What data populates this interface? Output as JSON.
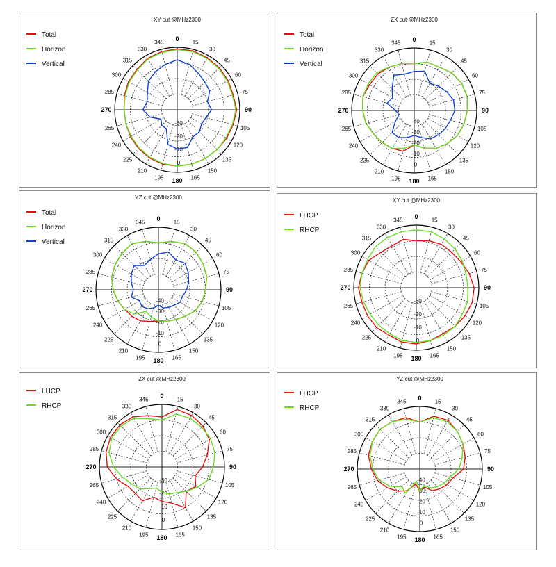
{
  "colors": {
    "Total": "#e01010",
    "Horizon": "#66dd22",
    "Vertical": "#1040d0",
    "LHCP": "#e01010",
    "RHCP": "#66dd22"
  },
  "chart_data": [
    {
      "type": "polar",
      "title": "XY cut @MHz2300",
      "angle_labels": [
        "0",
        "15",
        "30",
        "45",
        "60",
        "75",
        "90",
        "105",
        "120",
        "135",
        "150",
        "165",
        "180",
        "195",
        "210",
        "225",
        "240",
        "265",
        "270",
        "285",
        "300",
        "315",
        "330",
        "345"
      ],
      "radial_labels": [
        "-30",
        "-20",
        "-10",
        "0"
      ],
      "series": [
        {
          "name": "Total",
          "values": [
            -1,
            -1,
            -1.5,
            -2,
            -2.5,
            -3,
            -2,
            -3,
            -3.5,
            -4,
            -4,
            -4,
            -4,
            -4,
            -4.5,
            -5,
            -5.5,
            -6,
            -6,
            -5,
            -4,
            -3.5,
            -2,
            -1.5
          ]
        },
        {
          "name": "Horizon",
          "values": [
            -1.5,
            -1.5,
            -2,
            -2.5,
            -3,
            -3.5,
            -2.5,
            -3.5,
            -4,
            -4,
            -4,
            -4,
            -4,
            -4.5,
            -5,
            -5.5,
            -6,
            -6,
            -6,
            -5.5,
            -4.5,
            -4,
            -2.5,
            -2
          ]
        },
        {
          "name": "Vertical",
          "values": [
            -8,
            -10,
            -13,
            -15,
            -16,
            -20,
            -18,
            -21,
            -22,
            -20,
            -20,
            -15,
            -15,
            -17,
            -26,
            -26,
            -28,
            -22,
            -18,
            -20,
            -18,
            -14,
            -12,
            -10
          ]
        }
      ]
    },
    {
      "type": "polar",
      "title": "ZX cut @MHz2300",
      "angle_labels": [
        "0",
        "15",
        "30",
        "45",
        "60",
        "75",
        "90",
        "105",
        "120",
        "135",
        "150",
        "165",
        "180",
        "195",
        "210",
        "225",
        "240",
        "265",
        "270",
        "285",
        "300",
        "315",
        "330",
        "345"
      ],
      "radial_labels": [
        "-40",
        "-30",
        "-20",
        "-10",
        "0"
      ],
      "series": [
        {
          "name": "Total",
          "values": [
            -10,
            -8,
            -8,
            -6,
            -5,
            -5,
            -6,
            -7,
            -8,
            -10,
            -12,
            -15,
            -18,
            -13,
            -12,
            -11,
            -10,
            -8,
            -7,
            -6,
            -7,
            -7,
            -8,
            -9
          ]
        },
        {
          "name": "Horizon",
          "values": [
            -10,
            -8,
            -8,
            -6,
            -5,
            -5,
            -6,
            -7,
            -8,
            -10,
            -12,
            -15,
            -18,
            -15,
            -12,
            -11,
            -10,
            -8,
            -7,
            -6,
            -6,
            -6,
            -8,
            -9
          ]
        },
        {
          "name": "Vertical",
          "values": [
            -15,
            -14,
            -20,
            -18,
            -16,
            -14,
            -14,
            -16,
            -17,
            -18,
            -19,
            -22,
            -24,
            -22,
            -20,
            -20,
            -26,
            -30,
            -28,
            -22,
            -24,
            -20,
            -14,
            -16
          ]
        }
      ]
    },
    {
      "type": "polar",
      "title": "YZ cut @MHz2300",
      "angle_labels": [
        "0",
        "15",
        "30",
        "45",
        "60",
        "75",
        "90",
        "105",
        "120",
        "135",
        "150",
        "165",
        "180",
        "195",
        "210",
        "225",
        "240",
        "265",
        "270",
        "285",
        "300",
        "315",
        "330",
        "345"
      ],
      "radial_labels": [
        "-40",
        "-30",
        "-20",
        "-10",
        "0"
      ],
      "series": [
        {
          "name": "Total",
          "values": [
            -10,
            -8,
            -6,
            -6,
            -7,
            -8,
            -10,
            -11,
            -13,
            -16,
            -18,
            -19,
            -20,
            -19,
            -17,
            -16,
            -15,
            -13,
            -11,
            -9,
            -8,
            -7,
            -6,
            -8
          ]
        },
        {
          "name": "Horizon",
          "values": [
            -10,
            -8,
            -6,
            -6,
            -7,
            -8,
            -10,
            -11,
            -13,
            -16,
            -18,
            -19,
            -20,
            -22,
            -24,
            -18,
            -15,
            -13,
            -11,
            -9,
            -8,
            -7,
            -6,
            -8
          ]
        },
        {
          "name": "Vertical",
          "values": [
            -17,
            -15,
            -18,
            -16,
            -18,
            -20,
            -22,
            -24,
            -24,
            -26,
            -27,
            -28,
            -30,
            -28,
            -26,
            -25,
            -26,
            -22,
            -24,
            -22,
            -20,
            -18,
            -22,
            -20
          ]
        }
      ]
    },
    {
      "type": "polar",
      "title": "XY cut @MHz2300",
      "angle_labels": [
        "0",
        "15",
        "30",
        "45",
        "60",
        "75",
        "90",
        "105",
        "120",
        "135",
        "150",
        "165",
        "180",
        "195",
        "210",
        "225",
        "240",
        "265",
        "270",
        "285",
        "300",
        "315",
        "330",
        "345"
      ],
      "radial_labels": [
        "-30",
        "-20",
        "-10",
        "0"
      ],
      "series": [
        {
          "name": "LHCP",
          "values": [
            -10,
            -9,
            -8,
            -8,
            -7,
            -5,
            -3,
            -3,
            -4,
            -5,
            -6,
            -5,
            -4,
            -4,
            -5,
            -4,
            -4,
            -4,
            -3,
            -4,
            -5,
            -8,
            -9,
            -8
          ]
        },
        {
          "name": "RHCP",
          "values": [
            -3,
            -3,
            -4,
            -5,
            -6,
            -7,
            -7,
            -6,
            -6,
            -5,
            -5,
            -5,
            -5,
            -5,
            -6,
            -6,
            -6,
            -5,
            -4,
            -4,
            -4,
            -3,
            -3,
            -3
          ]
        }
      ]
    },
    {
      "type": "polar",
      "title": "ZX cut @MHz2300",
      "angle_labels": [
        "0",
        "15",
        "30",
        "45",
        "60",
        "75",
        "90",
        "105",
        "120",
        "135",
        "150",
        "165",
        "180",
        "195",
        "210",
        "225",
        "240",
        "265",
        "270",
        "285",
        "300",
        "315",
        "330",
        "345"
      ],
      "radial_labels": [
        "-30",
        "-20",
        "-10",
        "0"
      ],
      "series": [
        {
          "name": "LHCP",
          "values": [
            -8,
            -2,
            -2,
            -3,
            -5,
            -10,
            -14,
            -18,
            -15,
            -18,
            -10,
            -16,
            -18,
            -20,
            -15,
            -16,
            -15,
            -10,
            -5,
            -3,
            -2,
            -2,
            -3,
            -6
          ]
        },
        {
          "name": "RHCP",
          "values": [
            -10,
            -5,
            -4,
            -4,
            -4,
            -5,
            -7,
            -9,
            -14,
            -18,
            -21,
            -22,
            -24,
            -26,
            -24,
            -20,
            -18,
            -14,
            -9,
            -5,
            -3,
            -3,
            -4,
            -8
          ]
        }
      ]
    },
    {
      "type": "polar",
      "title": "YZ cut @MHz2300",
      "angle_labels": [
        "0",
        "15",
        "30",
        "45",
        "60",
        "75",
        "90",
        "105",
        "120",
        "135",
        "150",
        "165",
        "180",
        "195",
        "210",
        "225",
        "240",
        "265",
        "270",
        "285",
        "300",
        "315",
        "330",
        "345"
      ],
      "radial_labels": [
        "-40",
        "-30",
        "-20",
        "-10",
        "0"
      ],
      "series": [
        {
          "name": "LHCP",
          "values": [
            -10,
            -5,
            -4,
            -6,
            -8,
            -10,
            -12,
            -18,
            -20,
            -22,
            -24,
            -28,
            -26,
            -30,
            -24,
            -20,
            -16,
            -12,
            -9,
            -6,
            -5,
            -4,
            -5,
            -6
          ]
        },
        {
          "name": "RHCP",
          "values": [
            -10,
            -6,
            -5,
            -6,
            -8,
            -12,
            -15,
            -20,
            -22,
            -24,
            -26,
            -29,
            -26,
            -32,
            -22,
            -24,
            -18,
            -13,
            -10,
            -7,
            -5,
            -4,
            -5,
            -7
          ]
        }
      ]
    }
  ]
}
